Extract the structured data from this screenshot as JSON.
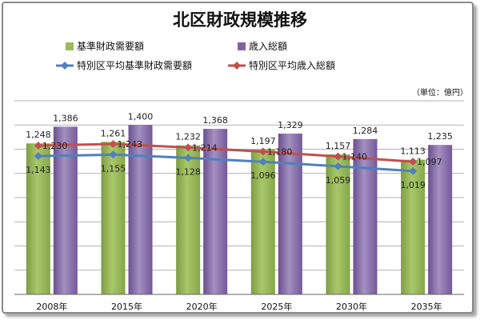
{
  "chart_data": {
    "type": "bar",
    "title": "北区財政規模推移",
    "unit_label": "（単位：億円）",
    "categories": [
      "2008年",
      "2015年",
      "2020年",
      "2025年",
      "2030年",
      "2035年"
    ],
    "series": [
      {
        "name": "基準財政需要額",
        "kind": "bar",
        "color": "#9bbb59",
        "values": [
          1248,
          1261,
          1232,
          1197,
          1157,
          1113
        ]
      },
      {
        "name": "歳入総額",
        "kind": "bar",
        "color": "#8064a2",
        "values": [
          1386,
          1400,
          1368,
          1329,
          1284,
          1235
        ]
      },
      {
        "name": "特別区平均基準財政需要額",
        "kind": "line",
        "color": "#4f81bd",
        "values": [
          1143,
          1155,
          1128,
          1096,
          1059,
          1019
        ]
      },
      {
        "name": "特別区平均歳入総額",
        "kind": "line",
        "color": "#c0504d",
        "values": [
          1230,
          1243,
          1214,
          1180,
          1140,
          1097
        ]
      }
    ],
    "ylim": [
      0,
      1600
    ],
    "grid": "horizontal",
    "legend": "top"
  }
}
